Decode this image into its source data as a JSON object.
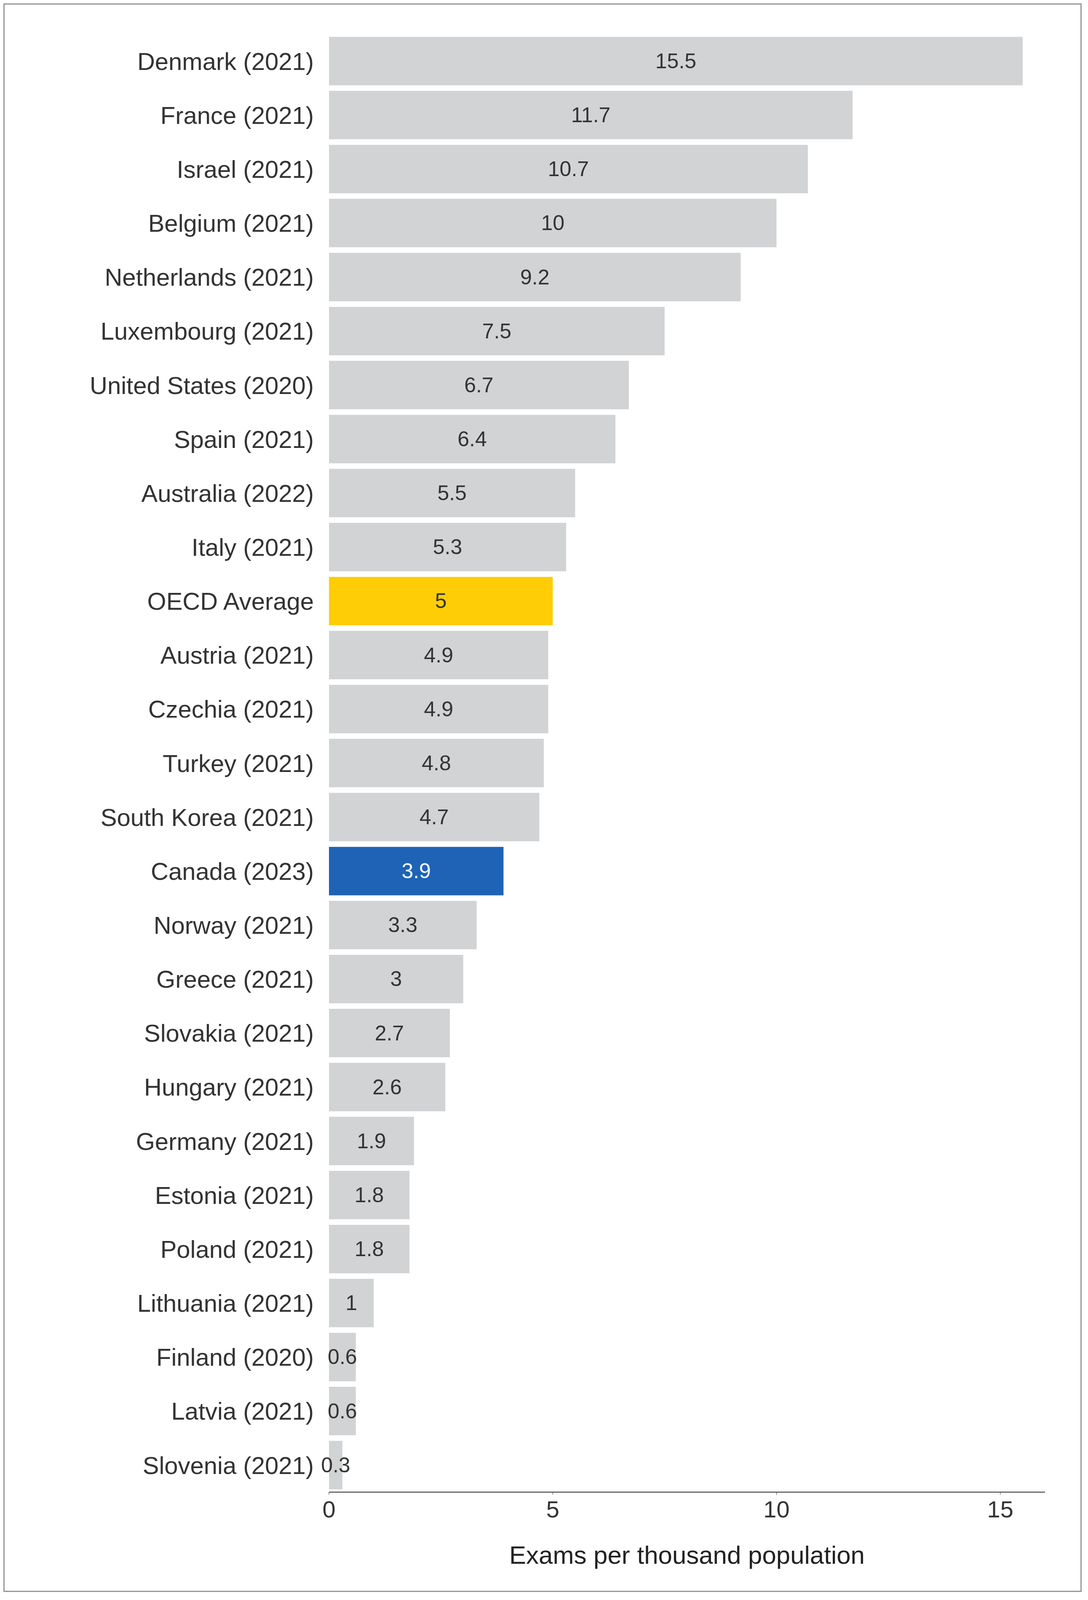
{
  "chart_data": {
    "type": "bar",
    "orientation": "horizontal",
    "x_label": "Exams per thousand population",
    "categories": [
      "Denmark (2021)",
      "France (2021)",
      "Israel (2021)",
      "Belgium (2021)",
      "Netherlands (2021)",
      "Luxembourg (2021)",
      "United States (2020)",
      "Spain (2021)",
      "Australia (2022)",
      "Italy (2021)",
      "OECD Average",
      "Austria (2021)",
      "Czechia (2021)",
      "Turkey (2021)",
      "South Korea (2021)",
      "Canada (2023)",
      "Norway (2021)",
      "Greece (2021)",
      "Slovakia (2021)",
      "Hungary (2021)",
      "Germany (2021)",
      "Estonia (2021)",
      "Poland (2021)",
      "Lithuania (2021)",
      "Finland (2020)",
      "Latvia (2021)",
      "Slovenia (2021)"
    ],
    "values": [
      15.5,
      11.7,
      10.7,
      10,
      9.2,
      7.5,
      6.7,
      6.4,
      5.5,
      5.3,
      5,
      4.9,
      4.9,
      4.8,
      4.7,
      3.9,
      3.3,
      3,
      2.7,
      2.6,
      1.9,
      1.8,
      1.8,
      1,
      0.6,
      0.6,
      0.3
    ],
    "colors": [
      "#d1d3d4",
      "#d1d3d4",
      "#d1d3d4",
      "#d1d3d4",
      "#d1d3d4",
      "#d1d3d4",
      "#d1d3d4",
      "#d1d3d4",
      "#d1d3d4",
      "#d1d3d4",
      "#ffcd05",
      "#d1d3d4",
      "#d1d3d4",
      "#d1d3d4",
      "#d1d3d4",
      "#1e63b5",
      "#d1d3d4",
      "#d1d3d4",
      "#d1d3d4",
      "#d1d3d4",
      "#d1d3d4",
      "#d1d3d4",
      "#d1d3d4",
      "#d1d3d4",
      "#d1d3d4",
      "#d1d3d4",
      "#d1d3d4"
    ],
    "xlim": [
      0,
      16
    ],
    "xticks": [
      0,
      5,
      10,
      15
    ],
    "grid": false,
    "data_labels": true
  }
}
